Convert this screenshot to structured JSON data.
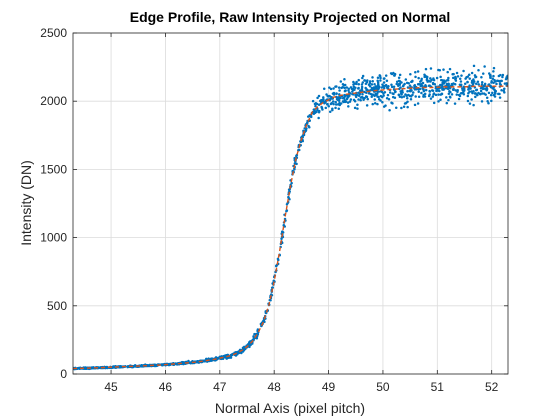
{
  "chart_data": {
    "type": "scatter",
    "title": "Edge Profile, Raw Intensity Projected on Normal",
    "xlabel": "Normal Axis (pixel pitch)",
    "ylabel": "Intensity (DN)",
    "xlim": [
      44.3,
      52.3
    ],
    "ylim": [
      0,
      2500
    ],
    "xticks": [
      45,
      46,
      47,
      48,
      49,
      50,
      51,
      52
    ],
    "yticks": [
      0,
      500,
      1000,
      1500,
      2000,
      2500
    ],
    "grid": true,
    "colors": {
      "points": "#0072BD",
      "fit": "#D95319"
    },
    "series": [
      {
        "kind": "scatter",
        "color": "#0072BD",
        "x": [
          44.3,
          44.5,
          44.7,
          44.9,
          45.1,
          45.3,
          45.5,
          45.7,
          45.9,
          46.1,
          46.3,
          46.5,
          46.7,
          46.9,
          47.1,
          47.2,
          47.3,
          47.4,
          47.5,
          47.6,
          47.7,
          47.8,
          47.9,
          48.0,
          48.1,
          48.2,
          48.3,
          48.4,
          48.5,
          48.6,
          48.7,
          48.8,
          48.9,
          49.0,
          49.1,
          49.2,
          49.3,
          49.5,
          49.7,
          49.9,
          50.1,
          50.3,
          50.5,
          50.7,
          50.9,
          51.1,
          51.3,
          51.5,
          51.7,
          51.9,
          52.1,
          52.3
        ],
        "y": [
          40,
          42,
          45,
          48,
          52,
          55,
          58,
          62,
          66,
          72,
          78,
          85,
          95,
          108,
          125,
          135,
          150,
          172,
          200,
          240,
          300,
          380,
          500,
          680,
          900,
          1150,
          1380,
          1580,
          1720,
          1830,
          1920,
          1960,
          1990,
          2010,
          2030,
          2040,
          2050,
          2060,
          2070,
          2080,
          2085,
          2090,
          2095,
          2100,
          2100,
          2105,
          2105,
          2105,
          2110,
          2110,
          2110,
          2110
        ],
        "noise": [
          2,
          2,
          2,
          3,
          3,
          3,
          3,
          3,
          3,
          4,
          4,
          4,
          4,
          5,
          6,
          6,
          7,
          8,
          9,
          10,
          12,
          14,
          16,
          18,
          20,
          22,
          22,
          22,
          20,
          20,
          25,
          35,
          40,
          45,
          50,
          55,
          55,
          55,
          55,
          55,
          55,
          55,
          55,
          55,
          55,
          55,
          55,
          55,
          55,
          55,
          55,
          55
        ]
      },
      {
        "kind": "line",
        "color": "#D95319",
        "style": "dashed",
        "x": [
          44.3,
          44.5,
          44.7,
          44.9,
          45.1,
          45.3,
          45.5,
          45.7,
          45.9,
          46.1,
          46.3,
          46.5,
          46.7,
          46.9,
          47.1,
          47.2,
          47.3,
          47.4,
          47.5,
          47.6,
          47.7,
          47.8,
          47.9,
          48.0,
          48.1,
          48.2,
          48.3,
          48.4,
          48.5,
          48.6,
          48.7,
          48.8,
          48.9,
          49.0,
          49.1,
          49.2,
          49.3,
          49.5,
          49.7,
          49.9,
          50.1,
          50.3,
          50.5,
          50.7,
          50.9,
          51.1,
          51.3,
          51.5,
          51.7,
          51.9,
          52.1,
          52.3
        ],
        "y": [
          40,
          42,
          45,
          48,
          52,
          55,
          58,
          62,
          66,
          72,
          78,
          85,
          95,
          108,
          125,
          135,
          150,
          172,
          200,
          240,
          300,
          380,
          500,
          680,
          900,
          1150,
          1380,
          1580,
          1720,
          1830,
          1920,
          1960,
          1990,
          2010,
          2030,
          2040,
          2050,
          2060,
          2070,
          2080,
          2085,
          2090,
          2095,
          2100,
          2100,
          2105,
          2105,
          2105,
          2110,
          2110,
          2110,
          2110
        ]
      }
    ]
  }
}
